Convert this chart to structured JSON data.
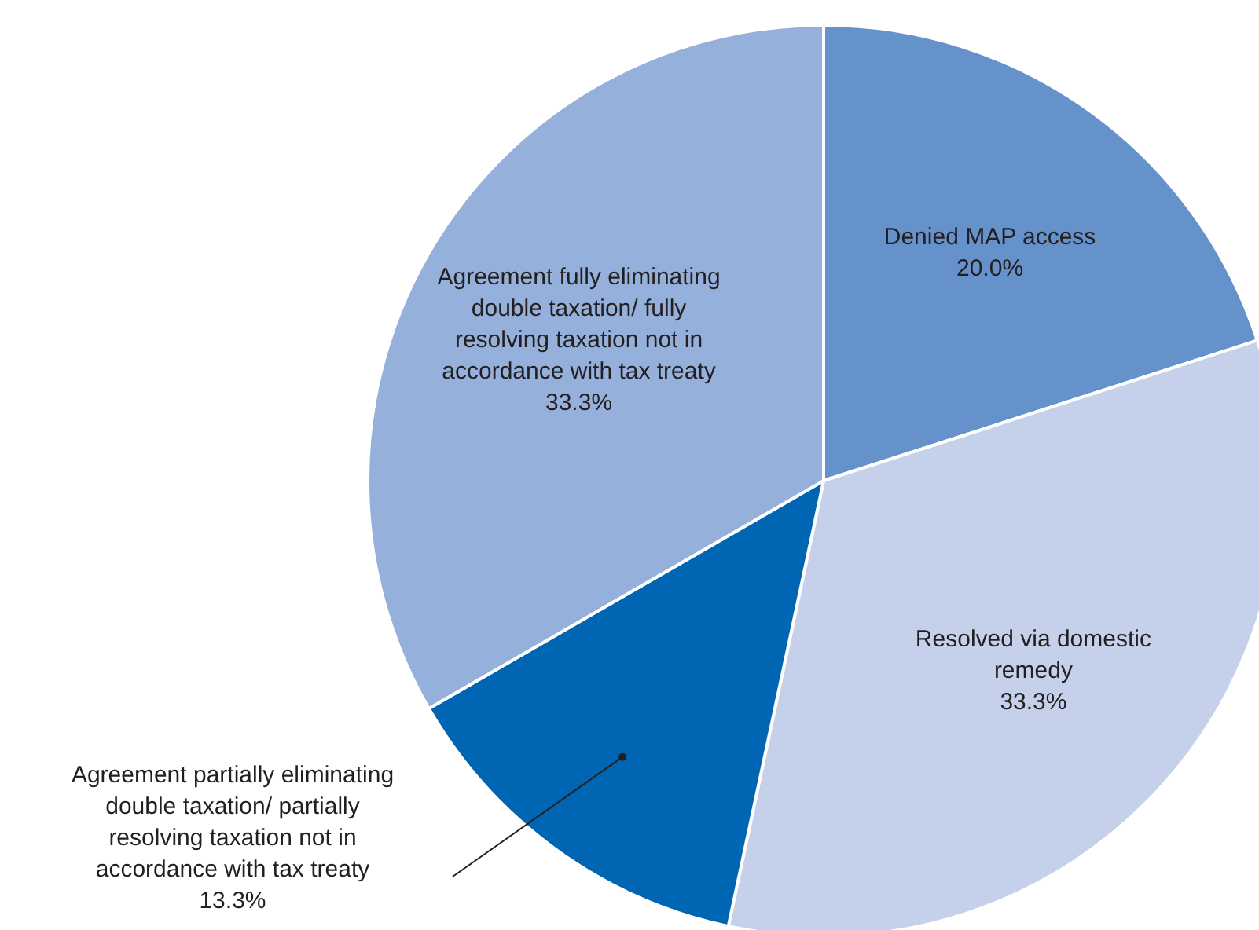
{
  "chart_data": {
    "type": "pie",
    "categories": [
      "Denied MAP access",
      "Resolved via domestic remedy",
      "Agreement partially eliminating double taxation/ partially resolving taxation not in accordance with tax treaty",
      "Agreement fully eliminating double taxation/ fully resolving taxation not in accordance with tax treaty"
    ],
    "values": [
      20.0,
      33.3,
      13.3,
      33.3
    ],
    "colors": [
      "#6592cb",
      "#c5d1ea",
      "#0065b2",
      "#95b0db"
    ],
    "value_labels": [
      "20.0%",
      "33.3%",
      "13.3%",
      "33.3%"
    ]
  }
}
